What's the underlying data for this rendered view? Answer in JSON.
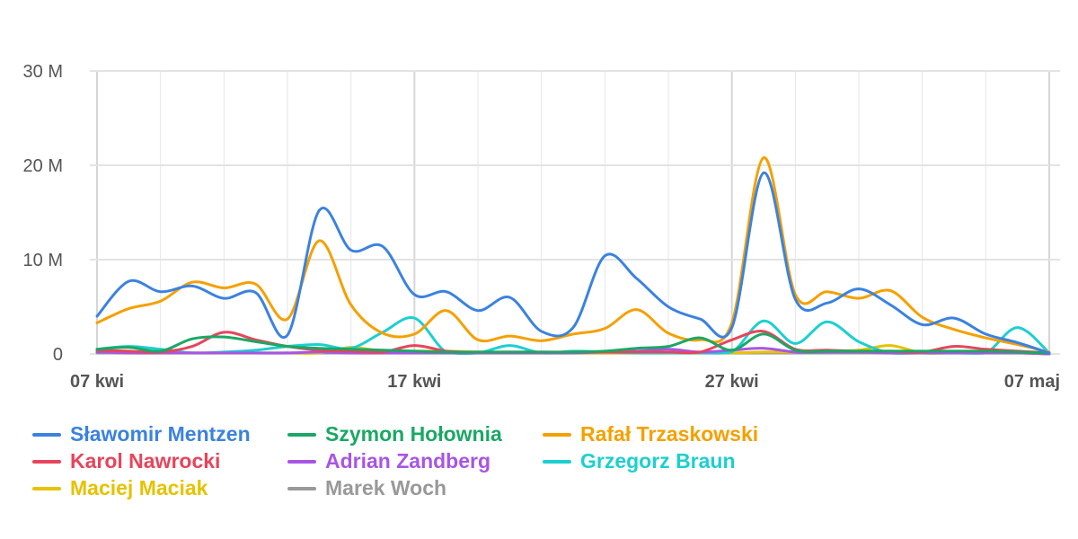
{
  "chart_data": {
    "type": "line",
    "x": [
      "2025-04-07",
      "2025-04-08",
      "2025-04-09",
      "2025-04-10",
      "2025-04-11",
      "2025-04-12",
      "2025-04-13",
      "2025-04-14",
      "2025-04-15",
      "2025-04-16",
      "2025-04-17",
      "2025-04-18",
      "2025-04-19",
      "2025-04-20",
      "2025-04-21",
      "2025-04-22",
      "2025-04-23",
      "2025-04-24",
      "2025-04-25",
      "2025-04-26",
      "2025-04-27",
      "2025-04-28",
      "2025-04-29",
      "2025-04-30",
      "2025-05-01",
      "2025-05-02",
      "2025-05-03",
      "2025-05-04",
      "2025-05-05",
      "2025-05-06",
      "2025-05-07"
    ],
    "x_ticks": [
      {
        "date": "2025-04-07",
        "label": "07 kwi"
      },
      {
        "date": "2025-04-17",
        "label": "17 kwi"
      },
      {
        "date": "2025-04-27",
        "label": "27 kwi"
      },
      {
        "date": "2025-05-07",
        "label": "07 maj"
      }
    ],
    "y_ticks": [
      {
        "value": 0,
        "label": "0"
      },
      {
        "value": 10000000,
        "label": "10 M"
      },
      {
        "value": 20000000,
        "label": "20 M"
      },
      {
        "value": 30000000,
        "label": "30 M"
      }
    ],
    "ylim": [
      0,
      30000000
    ],
    "grid": true,
    "legend_position": "bottom",
    "series": [
      {
        "name": "Sławomir Mentzen",
        "color": "#3b82e0",
        "values": [
          4000000,
          7700000,
          6600000,
          7200000,
          5900000,
          6500000,
          2000000,
          15200000,
          11000000,
          11400000,
          6300000,
          6600000,
          4600000,
          6000000,
          2400000,
          2800000,
          10400000,
          8000000,
          5000000,
          3700000,
          2800000,
          19200000,
          5800000,
          5400000,
          6900000,
          5200000,
          3100000,
          3800000,
          2100000,
          1200000,
          100000
        ]
      },
      {
        "name": "Szymon Hołownia",
        "color": "#1aa864",
        "values": [
          500000,
          700000,
          300000,
          1600000,
          1800000,
          1300000,
          800000,
          600000,
          500000,
          400000,
          300000,
          200000,
          200000,
          200000,
          200000,
          200000,
          300000,
          600000,
          800000,
          1700000,
          400000,
          2100000,
          400000,
          300000,
          300000,
          300000,
          300000,
          300000,
          300000,
          200000,
          100000
        ]
      },
      {
        "name": "Rafał Trzaskowski",
        "color": "#f5a000",
        "values": [
          3300000,
          4800000,
          5600000,
          7600000,
          7000000,
          7400000,
          3700000,
          12000000,
          5200000,
          2200000,
          2100000,
          4600000,
          1500000,
          1900000,
          1400000,
          2100000,
          2700000,
          4700000,
          2200000,
          1500000,
          3300000,
          20800000,
          6300000,
          6600000,
          5900000,
          6700000,
          3900000,
          2600000,
          1700000,
          1000000,
          200000
        ]
      },
      {
        "name": "Karol Nawrocki",
        "color": "#e8445a",
        "values": [
          400000,
          300000,
          200000,
          800000,
          2300000,
          1500000,
          800000,
          400000,
          300000,
          200000,
          900000,
          300000,
          200000,
          200000,
          200000,
          200000,
          200000,
          200000,
          200000,
          200000,
          1500000,
          2400000,
          500000,
          400000,
          300000,
          300000,
          200000,
          800000,
          500000,
          300000,
          100000
        ]
      },
      {
        "name": "Adrian Zandberg",
        "color": "#a855e6",
        "values": [
          200000,
          100000,
          100000,
          100000,
          100000,
          100000,
          100000,
          200000,
          100000,
          100000,
          100000,
          100000,
          100000,
          100000,
          100000,
          100000,
          200000,
          300000,
          500000,
          200000,
          400000,
          600000,
          200000,
          200000,
          200000,
          100000,
          100000,
          100000,
          100000,
          100000,
          0
        ]
      },
      {
        "name": "Grzegorz Braun",
        "color": "#1dcfd0",
        "values": [
          500000,
          800000,
          500000,
          100000,
          200000,
          400000,
          800000,
          1000000,
          600000,
          2300000,
          3800000,
          200000,
          100000,
          900000,
          100000,
          300000,
          200000,
          100000,
          100000,
          100000,
          200000,
          3500000,
          1100000,
          3400000,
          1300000,
          100000,
          100000,
          100000,
          100000,
          2800000,
          100000
        ]
      },
      {
        "name": "Maciej Maciak",
        "color": "#e6c200",
        "values": [
          200000,
          100000,
          100000,
          100000,
          100000,
          100000,
          100000,
          100000,
          700000,
          300000,
          300000,
          300000,
          200000,
          200000,
          100000,
          100000,
          100000,
          100000,
          100000,
          100000,
          100000,
          200000,
          200000,
          300000,
          400000,
          900000,
          100000,
          100000,
          100000,
          100000,
          0
        ]
      },
      {
        "name": "Marek Woch",
        "color": "#999999",
        "values": [
          100000,
          100000,
          100000,
          100000,
          100000,
          100000,
          100000,
          100000,
          100000,
          100000,
          100000,
          100000,
          100000,
          100000,
          100000,
          100000,
          100000,
          100000,
          100000,
          100000,
          100000,
          100000,
          100000,
          100000,
          100000,
          100000,
          100000,
          100000,
          100000,
          100000,
          0
        ]
      }
    ]
  }
}
